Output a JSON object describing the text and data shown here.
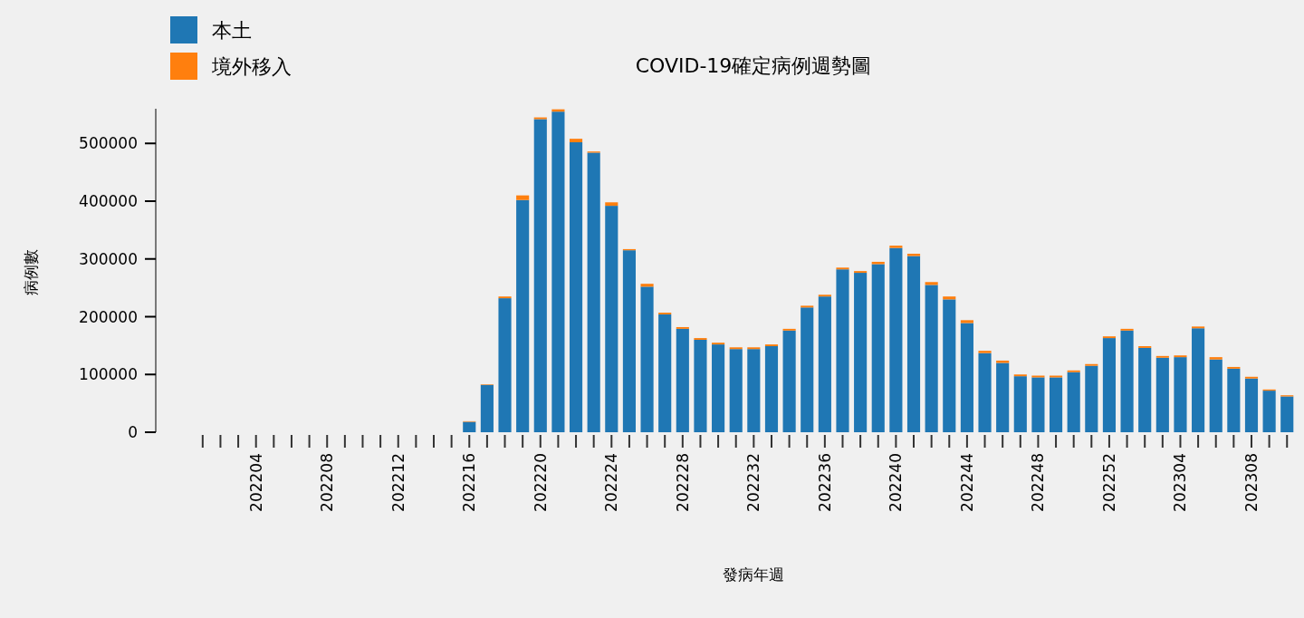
{
  "chart_data": {
    "type": "bar",
    "title": "COVID-19確定病例週勢圖",
    "xlabel": "發病年週",
    "ylabel": "病例數",
    "stacked": true,
    "legend": "top left",
    "categories": [
      null,
      null,
      null,
      "202204",
      null,
      null,
      null,
      "202208",
      null,
      null,
      null,
      "202212",
      null,
      null,
      null,
      "202216",
      null,
      null,
      null,
      "202220",
      null,
      null,
      null,
      "202224",
      null,
      null,
      null,
      "202228",
      null,
      null,
      null,
      "202232",
      null,
      null,
      null,
      "202236",
      null,
      null,
      null,
      "202240",
      null,
      null,
      null,
      "202244",
      null,
      null,
      null,
      "202248",
      null,
      null,
      null,
      "202252",
      null,
      null,
      null,
      "202304",
      null,
      null,
      null,
      "202308",
      null,
      null
    ],
    "series": [
      {
        "name": "本土",
        "color": "#1f77b4",
        "values": [
          0,
          0,
          0,
          0,
          0,
          0,
          0,
          0,
          0,
          0,
          0,
          0,
          0,
          0,
          0,
          18000,
          82000,
          232000,
          402000,
          542000,
          555000,
          502000,
          484000,
          392000,
          315000,
          252000,
          204000,
          179000,
          160000,
          152000,
          144000,
          144000,
          149000,
          176000,
          216000,
          235000,
          282000,
          276000,
          291000,
          319000,
          305000,
          255000,
          230000,
          189000,
          137000,
          120000,
          97000,
          95000,
          95000,
          104000,
          115000,
          163000,
          176000,
          146000,
          129000,
          130000,
          180000,
          126000,
          110000,
          93000,
          72000,
          62000
        ]
      },
      {
        "name": "境外移入",
        "color": "#ff7f0e",
        "values": [
          0,
          0,
          0,
          0,
          0,
          0,
          0,
          0,
          0,
          0,
          0,
          0,
          0,
          0,
          0,
          1000,
          1000,
          3000,
          8000,
          3000,
          4000,
          6000,
          2000,
          6000,
          2000,
          5000,
          3000,
          3000,
          3000,
          3000,
          3000,
          3000,
          3000,
          3000,
          3000,
          3000,
          3000,
          3000,
          4000,
          4000,
          4000,
          5000,
          5000,
          5000,
          4000,
          4000,
          3000,
          3000,
          3000,
          3000,
          3000,
          3000,
          3000,
          3000,
          3000,
          3000,
          3000,
          4000,
          3000,
          3000,
          2000,
          2000
        ]
      }
    ],
    "ylim": [
      0,
      560000
    ],
    "yticks": [
      0,
      100000,
      200000,
      300000,
      400000,
      500000
    ]
  }
}
